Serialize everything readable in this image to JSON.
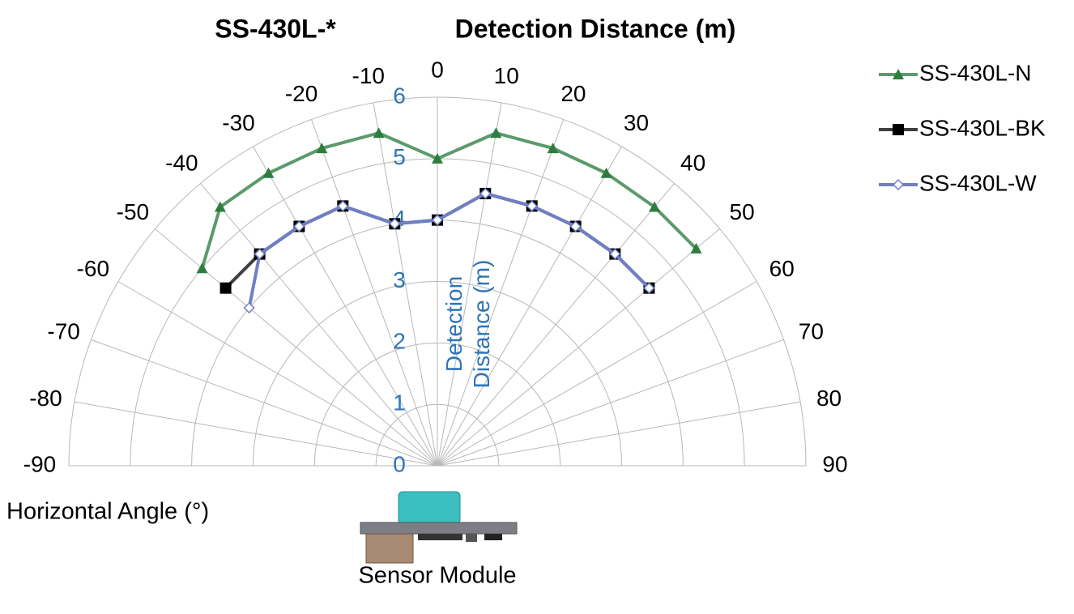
{
  "chart_data": {
    "type": "polar",
    "title": "SS-430L-*",
    "subtitle": "Detection Distance (m)",
    "r_axis_label": "Detection Distance (m)",
    "theta_axis_label": "Horizontal Angle (°)",
    "annotation": "Sensor Module",
    "x": [
      -50,
      -40,
      -30,
      -20,
      -10,
      0,
      10,
      20,
      30,
      40,
      50
    ],
    "xlim": [
      -90,
      90
    ],
    "xticks": [
      -90,
      -80,
      -70,
      -60,
      -50,
      -40,
      -30,
      -20,
      -10,
      0,
      10,
      20,
      30,
      40,
      50,
      60,
      70,
      80,
      90
    ],
    "ylim": [
      0,
      6
    ],
    "yticks": [
      0,
      1,
      2,
      3,
      4,
      5,
      6
    ],
    "grid": true,
    "legend": "right",
    "series": [
      {
        "name": "SS-430L-N",
        "color": "#5b9a6b",
        "marker": "triangle",
        "marker_color": "#2e7d3e",
        "values": [
          5,
          5.5,
          5.5,
          5.5,
          5.5,
          5,
          5.5,
          5.5,
          5.5,
          5.5,
          5.5
        ]
      },
      {
        "name": "SS-430L-BK",
        "color": "#404040",
        "marker": "square",
        "marker_color": "#000000",
        "values": [
          4.5,
          4.5,
          4.5,
          4.5,
          4,
          4,
          4.5,
          4.5,
          4.5,
          4.5,
          4.5
        ]
      },
      {
        "name": "SS-430L-W",
        "color": "#6f7fc4",
        "marker": "diamond",
        "marker_color": "#ffffff",
        "values": [
          4,
          4.5,
          4.5,
          4.5,
          4,
          4,
          4.5,
          4.5,
          4.5,
          4.5,
          4.5
        ]
      }
    ]
  }
}
